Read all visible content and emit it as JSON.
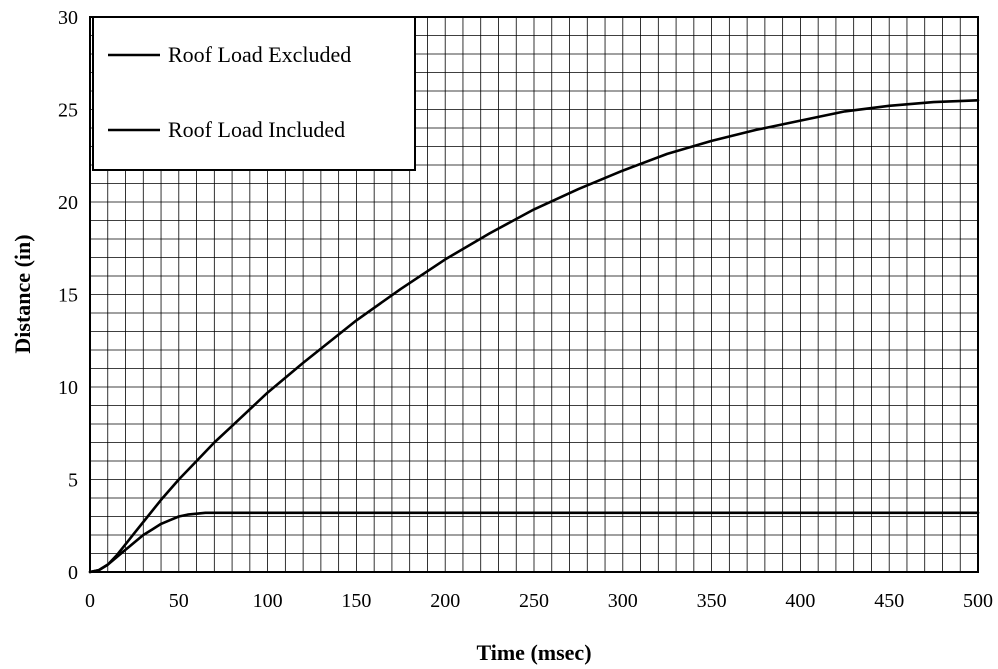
{
  "chart_data": {
    "type": "line",
    "xlabel": "Time (msec)",
    "ylabel": "Distance (in)",
    "xlim": [
      0,
      500
    ],
    "ylim": [
      0,
      30
    ],
    "x_ticks": [
      "0",
      "50",
      "100",
      "150",
      "200",
      "250",
      "300",
      "350",
      "400",
      "450",
      "500"
    ],
    "y_ticks": [
      "0",
      "5",
      "10",
      "15",
      "20",
      "25",
      "30"
    ],
    "grid": true,
    "legend_position": "top-left",
    "line_color": "#000000",
    "series": [
      {
        "name": "Roof Load Excluded",
        "x": [
          0,
          5,
          10,
          15,
          20,
          25,
          30,
          40,
          50,
          60,
          70,
          80,
          100,
          120,
          150,
          175,
          200,
          225,
          250,
          275,
          300,
          325,
          350,
          375,
          400,
          425,
          450,
          475,
          500
        ],
        "y": [
          0,
          0.1,
          0.4,
          0.9,
          1.5,
          2.1,
          2.7,
          3.9,
          5.0,
          6.0,
          7.0,
          7.9,
          9.7,
          11.3,
          13.6,
          15.3,
          16.9,
          18.3,
          19.6,
          20.7,
          21.7,
          22.6,
          23.3,
          23.9,
          24.4,
          24.9,
          25.2,
          25.4,
          25.5
        ]
      },
      {
        "name": "Roof Load Included",
        "x": [
          0,
          5,
          10,
          15,
          20,
          25,
          30,
          35,
          40,
          45,
          50,
          55,
          60,
          65,
          70,
          100,
          200,
          300,
          400,
          500
        ],
        "y": [
          0,
          0.1,
          0.4,
          0.8,
          1.2,
          1.6,
          2.0,
          2.3,
          2.6,
          2.8,
          3.0,
          3.1,
          3.15,
          3.2,
          3.2,
          3.2,
          3.2,
          3.2,
          3.2,
          3.2
        ]
      }
    ]
  }
}
